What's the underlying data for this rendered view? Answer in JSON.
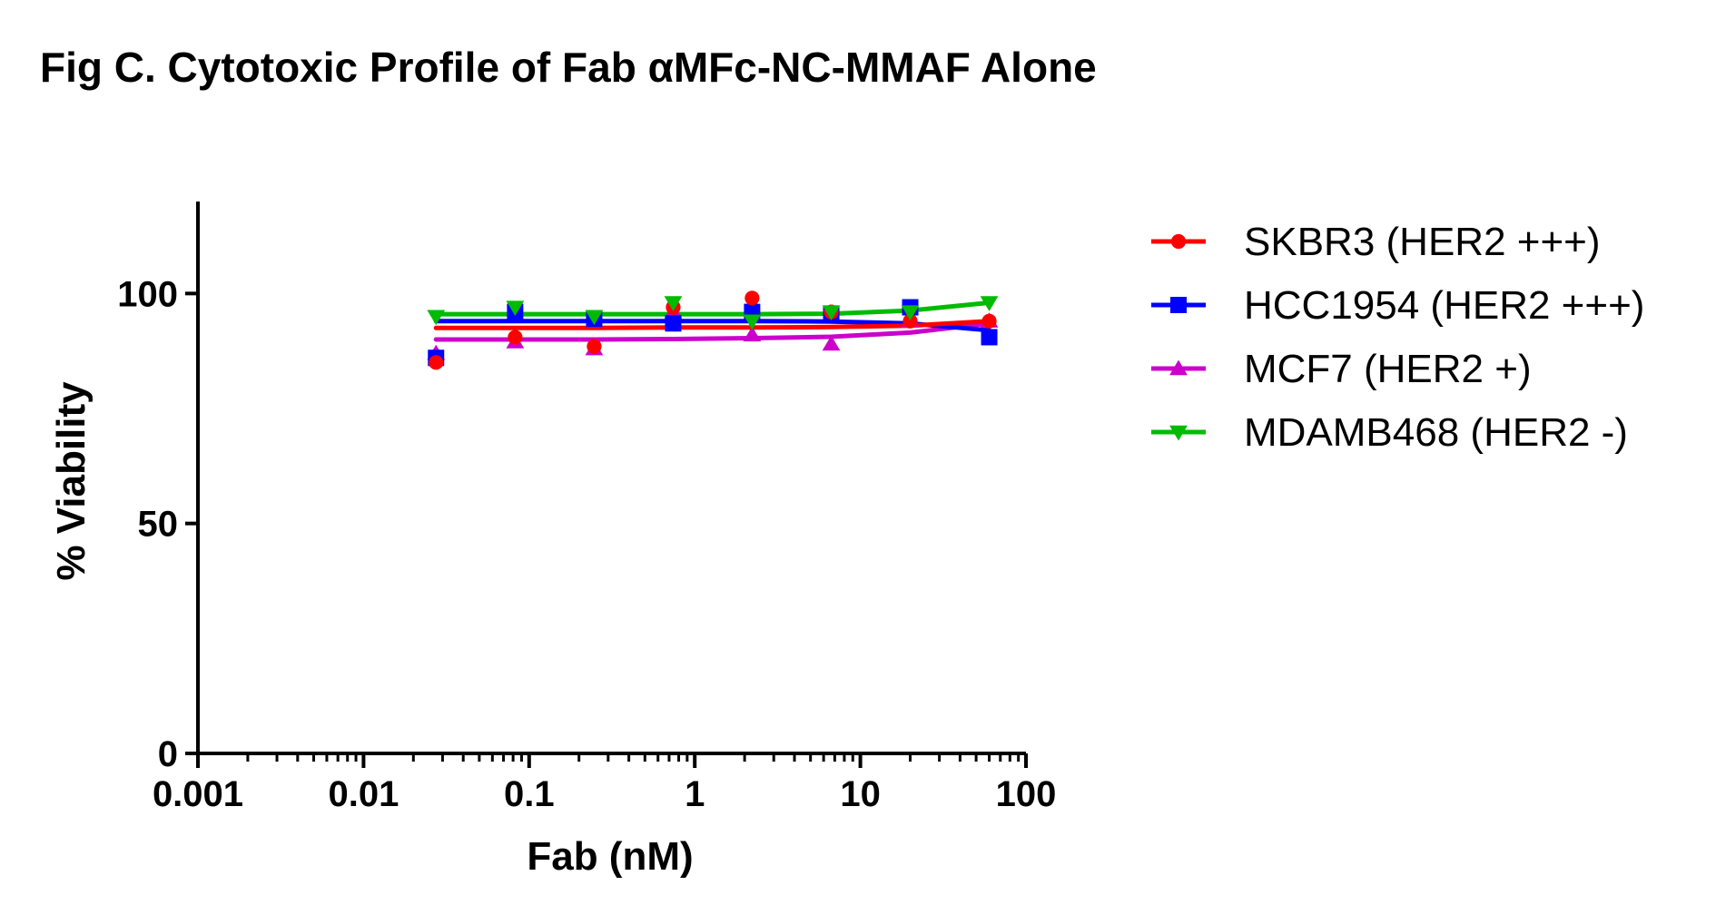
{
  "chart_data": {
    "type": "scatter",
    "title": "Fig C. Cytotoxic Profile of Fab αMFc-NC-MMAF Alone",
    "xlabel": "Fab (nM)",
    "ylabel": "% Viability",
    "xscale": "log",
    "xlim": [
      0.001,
      100
    ],
    "ylim": [
      0,
      120
    ],
    "x_ticks": [
      0.001,
      0.01,
      0.1,
      1,
      10,
      100
    ],
    "x_tick_labels": [
      "0.001",
      "0.01",
      "0.1",
      "1",
      "10",
      "100"
    ],
    "y_ticks": [
      0,
      50,
      100
    ],
    "y_tick_labels": [
      "0",
      "50",
      "100"
    ],
    "grid": false,
    "legend_position": "right",
    "series": [
      {
        "name": "SKBR3 (HER2 +++)",
        "color": "#ff0000",
        "marker": "circle",
        "x": [
          0.0274,
          0.0823,
          0.247,
          0.741,
          2.22,
          6.67,
          20,
          60
        ],
        "y": [
          85,
          90.5,
          88.5,
          97,
          99,
          96,
          94,
          94
        ],
        "fit": [
          92.5,
          92.5,
          92.5,
          92.6,
          92.6,
          92.7,
          93,
          94
        ]
      },
      {
        "name": "HCC1954 (HER2 +++)",
        "color": "#0000ff",
        "marker": "square",
        "x": [
          0.0274,
          0.0823,
          0.247,
          0.741,
          2.22,
          6.67,
          20,
          60
        ],
        "y": [
          86,
          96,
          94.5,
          93.5,
          96,
          95.5,
          97,
          90.5
        ],
        "fit": [
          94,
          94,
          94,
          94,
          94,
          93.9,
          93.5,
          92
        ]
      },
      {
        "name": "MCF7 (HER2 +)",
        "color": "#cc00cc",
        "marker": "triangle-up",
        "x": [
          0.0274,
          0.0823,
          0.247,
          0.741,
          2.22,
          6.67,
          20,
          60
        ],
        "y": [
          87,
          89.5,
          88,
          96,
          91,
          89,
          94,
          94
        ],
        "fit": [
          90,
          90,
          90,
          90.1,
          90.3,
          90.6,
          91.5,
          93.5
        ]
      },
      {
        "name": "MDAMB468 (HER2 -)",
        "color": "#00bb00",
        "marker": "triangle-down",
        "x": [
          0.0274,
          0.0823,
          0.247,
          0.741,
          2.22,
          6.67,
          20,
          60
        ],
        "y": [
          95,
          97,
          95,
          98,
          94,
          96,
          96,
          98
        ],
        "fit": [
          95.5,
          95.5,
          95.5,
          95.5,
          95.5,
          95.6,
          96.3,
          98
        ]
      }
    ]
  }
}
